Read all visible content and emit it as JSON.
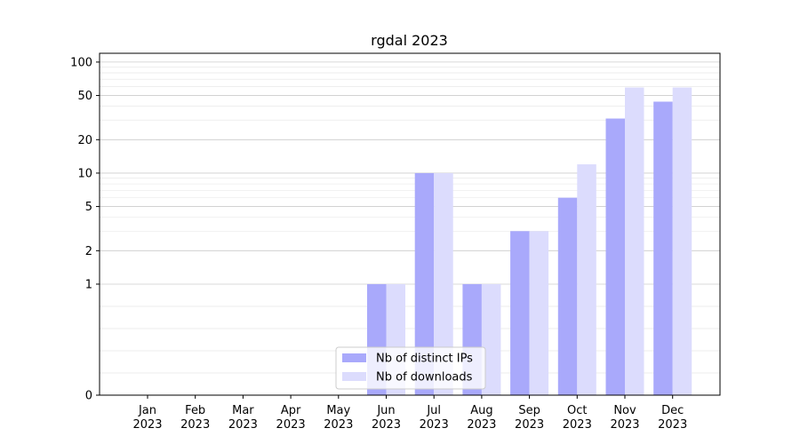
{
  "chart_data": {
    "type": "bar",
    "title": "rgdal 2023",
    "xlabel": "",
    "ylabel": "",
    "yscale": "symlog",
    "ylim": [
      0,
      120
    ],
    "yticks": [
      0,
      1,
      2,
      5,
      10,
      20,
      50,
      100
    ],
    "grid": true,
    "legend_position": "lower-center",
    "categories": [
      [
        "Jan",
        "2023"
      ],
      [
        "Feb",
        "2023"
      ],
      [
        "Mar",
        "2023"
      ],
      [
        "Apr",
        "2023"
      ],
      [
        "May",
        "2023"
      ],
      [
        "Jun",
        "2023"
      ],
      [
        "Jul",
        "2023"
      ],
      [
        "Aug",
        "2023"
      ],
      [
        "Sep",
        "2023"
      ],
      [
        "Oct",
        "2023"
      ],
      [
        "Nov",
        "2023"
      ],
      [
        "Dec",
        "2023"
      ]
    ],
    "series": [
      {
        "name": "Nb of distinct IPs",
        "color": "#a9a9fb",
        "values": [
          0,
          0,
          0,
          0,
          0,
          1,
          10,
          1,
          3,
          6,
          31,
          44
        ]
      },
      {
        "name": "Nb of downloads",
        "color": "#dcdcfd",
        "values": [
          0,
          0,
          0,
          0,
          0,
          1,
          10,
          1,
          3,
          12,
          59,
          59
        ]
      }
    ]
  }
}
